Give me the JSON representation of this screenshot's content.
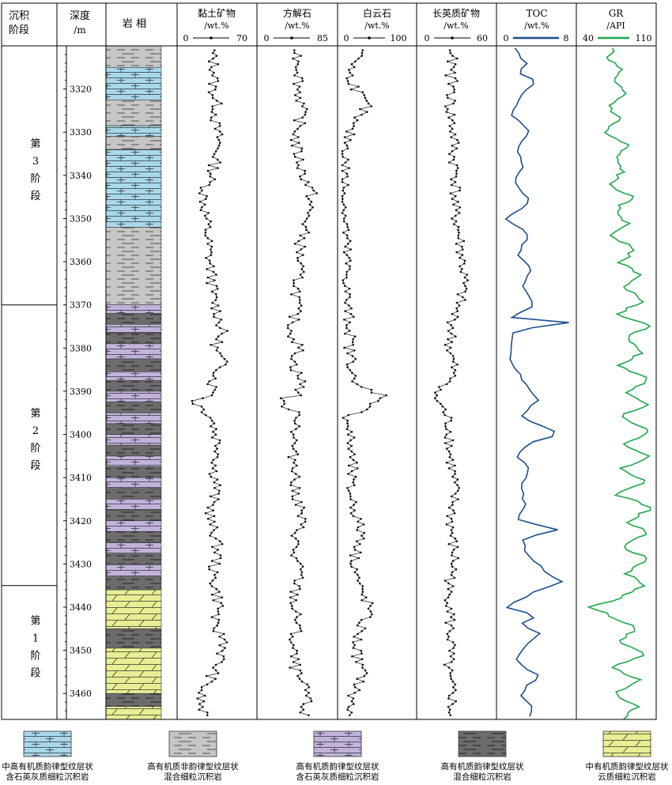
{
  "headers": {
    "stage": [
      "沉积",
      "阶段"
    ],
    "depth": [
      "深度",
      "/m"
    ],
    "lith": "岩 相",
    "clay": {
      "title": "黏土矿物",
      "unit": "/wt.%",
      "min": "0",
      "max": "70"
    },
    "calcite": {
      "title": "方解石",
      "unit": "/wt.%",
      "min": "0",
      "max": "85"
    },
    "dolomite": {
      "title": "白云石",
      "unit": "/wt.%",
      "min": "0",
      "max": "100"
    },
    "felsic": {
      "title": "长英质矿物",
      "unit": "/wt.%",
      "min": "0",
      "max": "60"
    },
    "toc": {
      "title": "TOC",
      "unit": "/wt.%",
      "min": "0",
      "max": "8"
    },
    "gr": {
      "title": "GR",
      "unit": "/API",
      "min": "40",
      "max": "110"
    }
  },
  "stages": [
    {
      "chars": [
        "第",
        "3",
        "阶",
        "段"
      ],
      "top": 3310,
      "bottom": 3370
    },
    {
      "chars": [
        "第",
        "2",
        "阶",
        "段"
      ],
      "top": 3370,
      "bottom": 3435
    },
    {
      "chars": [
        "第",
        "1",
        "阶",
        "段"
      ],
      "top": 3435,
      "bottom": 3466
    }
  ],
  "depth_ticks": [
    "3320",
    "3330",
    "3340",
    "3350",
    "3360",
    "3370",
    "3380",
    "3390",
    "3400",
    "3410",
    "3420",
    "3430",
    "3440",
    "3450",
    "3460"
  ],
  "legend": [
    {
      "type": "blue",
      "color": "#a8d8ec",
      "line1": "中高有机质韵律型纹层状",
      "line2": "含石英灰质细粒沉积岩"
    },
    {
      "type": "gray",
      "color": "#c6c6c6",
      "line1": "高有机质非韵律型纹层状",
      "line2": "混合细粒沉积岩"
    },
    {
      "type": "purple",
      "color": "#c2b3dd",
      "line1": "高有机质韵律型纹层状",
      "line2": "含石英灰质细粒沉积岩"
    },
    {
      "type": "dark",
      "color": "#6c6c6c",
      "line1": "高有机质韵律型纹层状",
      "line2": "混合细粒沉积岩"
    },
    {
      "type": "yellow",
      "color": "#e8ef92",
      "line1": "中有机质韵律型纹层状",
      "line2": "云质细粒沉积岩"
    }
  ],
  "colors": {
    "toc": "#1b4f8f",
    "gr": "#1ea84a",
    "minerals": "#333333"
  },
  "chart_data": {
    "type": "line",
    "depth_range": [
      3310,
      3466
    ],
    "lithology_column": [
      {
        "top": 3310.0,
        "bottom": 3315.0,
        "type": "gray"
      },
      {
        "top": 3315.0,
        "bottom": 3322.5,
        "type": "blue"
      },
      {
        "top": 3322.5,
        "bottom": 3328.5,
        "type": "gray"
      },
      {
        "top": 3328.5,
        "bottom": 3331.0,
        "type": "blue"
      },
      {
        "top": 3331.0,
        "bottom": 3334.0,
        "type": "gray"
      },
      {
        "top": 3334.0,
        "bottom": 3352.0,
        "type": "blue"
      },
      {
        "top": 3352.0,
        "bottom": 3370.0,
        "type": "gray"
      },
      {
        "top": 3370.0,
        "bottom": 3372.0,
        "type": "purple"
      },
      {
        "top": 3372.0,
        "bottom": 3374.5,
        "type": "dark"
      },
      {
        "top": 3374.5,
        "bottom": 3376.5,
        "type": "purple"
      },
      {
        "top": 3376.5,
        "bottom": 3379.0,
        "type": "dark"
      },
      {
        "top": 3379.0,
        "bottom": 3382.5,
        "type": "purple"
      },
      {
        "top": 3382.5,
        "bottom": 3385.5,
        "type": "dark"
      },
      {
        "top": 3385.5,
        "bottom": 3387.5,
        "type": "purple"
      },
      {
        "top": 3387.5,
        "bottom": 3390.0,
        "type": "dark"
      },
      {
        "top": 3390.0,
        "bottom": 3392.5,
        "type": "purple"
      },
      {
        "top": 3392.5,
        "bottom": 3395.0,
        "type": "dark"
      },
      {
        "top": 3395.0,
        "bottom": 3397.5,
        "type": "purple"
      },
      {
        "top": 3397.5,
        "bottom": 3400.0,
        "type": "dark"
      },
      {
        "top": 3400.0,
        "bottom": 3402.5,
        "type": "purple"
      },
      {
        "top": 3402.5,
        "bottom": 3405.0,
        "type": "dark"
      },
      {
        "top": 3405.0,
        "bottom": 3407.5,
        "type": "purple"
      },
      {
        "top": 3407.5,
        "bottom": 3410.0,
        "type": "dark"
      },
      {
        "top": 3410.0,
        "bottom": 3412.5,
        "type": "purple"
      },
      {
        "top": 3412.5,
        "bottom": 3415.0,
        "type": "dark"
      },
      {
        "top": 3415.0,
        "bottom": 3417.5,
        "type": "purple"
      },
      {
        "top": 3417.5,
        "bottom": 3420.0,
        "type": "dark"
      },
      {
        "top": 3420.0,
        "bottom": 3422.5,
        "type": "purple"
      },
      {
        "top": 3422.5,
        "bottom": 3425.0,
        "type": "dark"
      },
      {
        "top": 3425.0,
        "bottom": 3427.5,
        "type": "purple"
      },
      {
        "top": 3427.5,
        "bottom": 3430.0,
        "type": "dark"
      },
      {
        "top": 3430.0,
        "bottom": 3433.0,
        "type": "purple"
      },
      {
        "top": 3433.0,
        "bottom": 3436.0,
        "type": "dark"
      },
      {
        "top": 3436.0,
        "bottom": 3445.0,
        "type": "yellow"
      },
      {
        "top": 3445.0,
        "bottom": 3449.5,
        "type": "dark"
      },
      {
        "top": 3449.5,
        "bottom": 3460.0,
        "type": "yellow"
      },
      {
        "top": 3460.0,
        "bottom": 3463.0,
        "type": "dark"
      },
      {
        "top": 3463.0,
        "bottom": 3466.0,
        "type": "yellow"
      }
    ],
    "series": [
      {
        "name": "黏土矿物",
        "key": "clay",
        "min": 0,
        "max": 70,
        "style": "marker",
        "depth": [
          3312,
          3316,
          3320,
          3324,
          3328,
          3332,
          3336,
          3340,
          3344,
          3348,
          3352,
          3356,
          3360,
          3364,
          3368,
          3372,
          3376,
          3380,
          3384,
          3388,
          3391,
          3392,
          3396,
          3400,
          3404,
          3408,
          3412,
          3416,
          3420,
          3424,
          3428,
          3432,
          3436,
          3440,
          3444,
          3448,
          3452,
          3456,
          3460,
          3464
        ],
        "values": [
          30,
          33,
          31,
          35,
          33,
          37,
          34,
          30,
          22,
          23,
          25,
          26,
          28,
          30,
          31,
          36,
          40,
          33,
          42,
          30,
          34,
          11,
          30,
          34,
          38,
          32,
          35,
          30,
          28,
          34,
          36,
          30,
          34,
          38,
          30,
          44,
          38,
          30,
          18,
          20
        ]
      },
      {
        "name": "方解石",
        "key": "calcite",
        "min": 0,
        "max": 85,
        "style": "marker",
        "depth": [
          3312,
          3316,
          3320,
          3324,
          3328,
          3332,
          3336,
          3340,
          3344,
          3348,
          3352,
          3356,
          3360,
          3364,
          3368,
          3372,
          3376,
          3380,
          3384,
          3388,
          3391,
          3392,
          3396,
          3400,
          3404,
          3408,
          3412,
          3416,
          3420,
          3424,
          3428,
          3432,
          3436,
          3440,
          3444,
          3448,
          3452,
          3456,
          3460,
          3464
        ],
        "values": [
          43,
          46,
          44,
          48,
          45,
          40,
          44,
          50,
          60,
          56,
          52,
          46,
          45,
          43,
          42,
          40,
          35,
          45,
          38,
          48,
          44,
          19,
          46,
          40,
          36,
          43,
          38,
          45,
          47,
          41,
          38,
          46,
          40,
          38,
          44,
          36,
          38,
          42,
          55,
          50
        ]
      },
      {
        "name": "白云石",
        "key": "dolomite",
        "min": 0,
        "max": 100,
        "style": "marker",
        "depth": [
          3312,
          3316,
          3320,
          3324,
          3328,
          3332,
          3336,
          3340,
          3344,
          3348,
          3352,
          3356,
          3360,
          3364,
          3368,
          3372,
          3376,
          3380,
          3384,
          3388,
          3391,
          3392,
          3396,
          3400,
          3404,
          3408,
          3412,
          3416,
          3420,
          3424,
          3428,
          3432,
          3436,
          3440,
          3444,
          3448,
          3452,
          3456,
          3460,
          3464
        ],
        "values": [
          30,
          8,
          20,
          35,
          12,
          8,
          4,
          3,
          3,
          4,
          5,
          5,
          6,
          7,
          6,
          8,
          12,
          10,
          15,
          12,
          60,
          58,
          8,
          10,
          12,
          14,
          10,
          16,
          22,
          30,
          18,
          20,
          25,
          40,
          28,
          20,
          22,
          30,
          15,
          10
        ]
      },
      {
        "name": "长英质矿物",
        "key": "felsic",
        "min": 0,
        "max": 60,
        "style": "marker",
        "depth": [
          3312,
          3316,
          3320,
          3324,
          3328,
          3332,
          3336,
          3340,
          3344,
          3348,
          3352,
          3356,
          3360,
          3364,
          3368,
          3372,
          3376,
          3380,
          3384,
          3388,
          3391,
          3392,
          3396,
          3400,
          3404,
          3408,
          3412,
          3416,
          3420,
          3424,
          3428,
          3432,
          3436,
          3440,
          3444,
          3448,
          3452,
          3456,
          3460,
          3464
        ],
        "values": [
          26,
          25,
          27,
          24,
          26,
          28,
          27,
          30,
          29,
          28,
          31,
          33,
          35,
          36,
          34,
          28,
          26,
          24,
          27,
          25,
          9,
          14,
          22,
          25,
          24,
          26,
          28,
          27,
          25,
          26,
          28,
          27,
          22,
          26,
          24,
          25,
          23,
          22,
          27,
          25
        ]
      },
      {
        "name": "TOC",
        "key": "toc",
        "min": 0,
        "max": 8,
        "style": "line",
        "depth": [
          3311,
          3314,
          3316,
          3318,
          3322,
          3326,
          3330,
          3334,
          3338,
          3342,
          3346,
          3350,
          3354,
          3358,
          3362,
          3366,
          3370,
          3373,
          3374,
          3376,
          3380,
          3384,
          3388,
          3392,
          3396,
          3400,
          3402,
          3405,
          3408,
          3412,
          3416,
          3420,
          3422,
          3424,
          3428,
          3432,
          3434,
          3436,
          3440,
          3442,
          3444,
          3446,
          3448,
          3452,
          3456,
          3460,
          3463,
          3466
        ],
        "values": [
          1.5,
          2.8,
          1.9,
          3.8,
          2.2,
          1.3,
          3.1,
          1.6,
          2.6,
          1.4,
          3.4,
          0.7,
          3.2,
          1.9,
          3.5,
          2.4,
          4.0,
          1.1,
          7.8,
          1.5,
          1.0,
          1.4,
          2.6,
          4.2,
          2.0,
          6.8,
          3.2,
          1.8,
          3.4,
          2.2,
          2.6,
          1.9,
          6.4,
          2.5,
          3.0,
          5.1,
          6.9,
          4.3,
          0.3,
          4.0,
          2.1,
          4.7,
          3.0,
          1.6,
          4.2,
          2.1,
          3.6,
          2.8
        ]
      },
      {
        "name": "GR",
        "key": "gr",
        "min": 40,
        "max": 110,
        "style": "line",
        "depth": [
          3311,
          3313,
          3315,
          3318,
          3321,
          3324,
          3327,
          3330,
          3333,
          3336,
          3339,
          3342,
          3345,
          3348,
          3351,
          3354,
          3357,
          3360,
          3363,
          3366,
          3369,
          3372,
          3375,
          3378,
          3381,
          3384,
          3387,
          3390,
          3393,
          3396,
          3399,
          3402,
          3405,
          3408,
          3411,
          3414,
          3417,
          3420,
          3423,
          3426,
          3429,
          3432,
          3435,
          3438,
          3440,
          3442,
          3445,
          3448,
          3451,
          3454,
          3457,
          3460,
          3463,
          3466
        ],
        "values": [
          72,
          64,
          80,
          70,
          84,
          68,
          78,
          62,
          86,
          73,
          82,
          68,
          90,
          74,
          86,
          70,
          96,
          78,
          100,
          80,
          104,
          76,
          108,
          82,
          104,
          74,
          110,
          86,
          108,
          78,
          112,
          82,
          108,
          80,
          104,
          76,
          112,
          86,
          106,
          80,
          110,
          84,
          102,
          78,
          48,
          70,
          96,
          74,
          104,
          70,
          100,
          72,
          96,
          80
        ]
      }
    ]
  }
}
